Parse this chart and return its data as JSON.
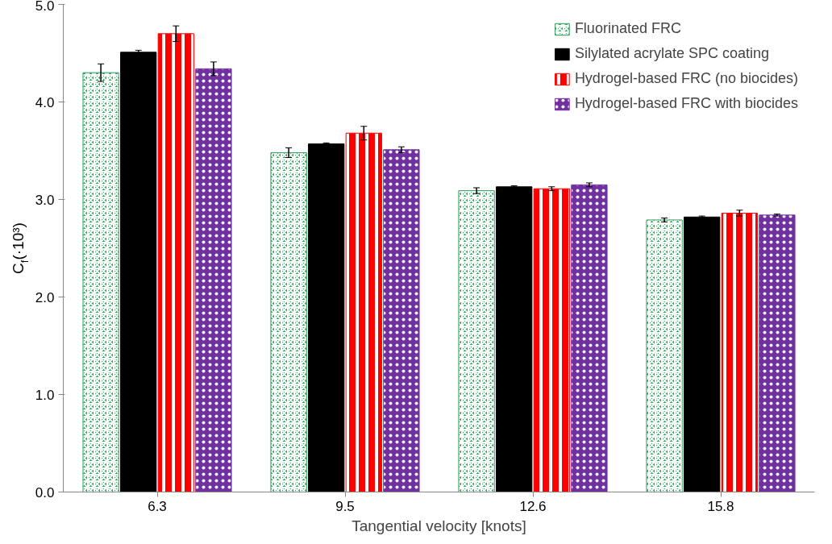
{
  "chart_data": {
    "type": "bar",
    "xlabel": "Tangential velocity [knots]",
    "ylabel": "C$_{f}$(·10³)",
    "categories": [
      "6.3",
      "9.5",
      "12.6",
      "15.8"
    ],
    "series": [
      {
        "name": "Fluorinated FRC",
        "color": "#2ca05a",
        "values": [
          4.3,
          3.48,
          3.09,
          2.79
        ],
        "errors": [
          0.09,
          0.05,
          0.03,
          0.02
        ]
      },
      {
        "name": "Silylated acrylate SPC coating",
        "color": "#000000",
        "values": [
          4.51,
          3.57,
          3.13,
          2.82
        ],
        "errors": [
          0.02,
          0.01,
          0.01,
          0.01
        ]
      },
      {
        "name": "Hydrogel-based FRC (no biocides)",
        "color": "#ff0000",
        "values": [
          4.7,
          3.68,
          3.11,
          2.86
        ],
        "errors": [
          0.08,
          0.07,
          0.02,
          0.03
        ]
      },
      {
        "name": "Hydrogel-based FRC with biocides",
        "color": "#7030a0",
        "values": [
          4.34,
          3.51,
          3.15,
          2.84
        ],
        "errors": [
          0.07,
          0.03,
          0.02,
          0.01
        ]
      }
    ],
    "ylim": [
      0,
      5
    ],
    "yticks": [
      {
        "value": 0,
        "label": "0.0"
      },
      {
        "value": 1,
        "label": "1.0"
      },
      {
        "value": 2,
        "label": "2.0"
      },
      {
        "value": 3,
        "label": "3.0"
      },
      {
        "value": 4,
        "label": "4.0"
      },
      {
        "value": 5,
        "label": "5.0"
      }
    ],
    "grid": false,
    "legend": "top right"
  }
}
